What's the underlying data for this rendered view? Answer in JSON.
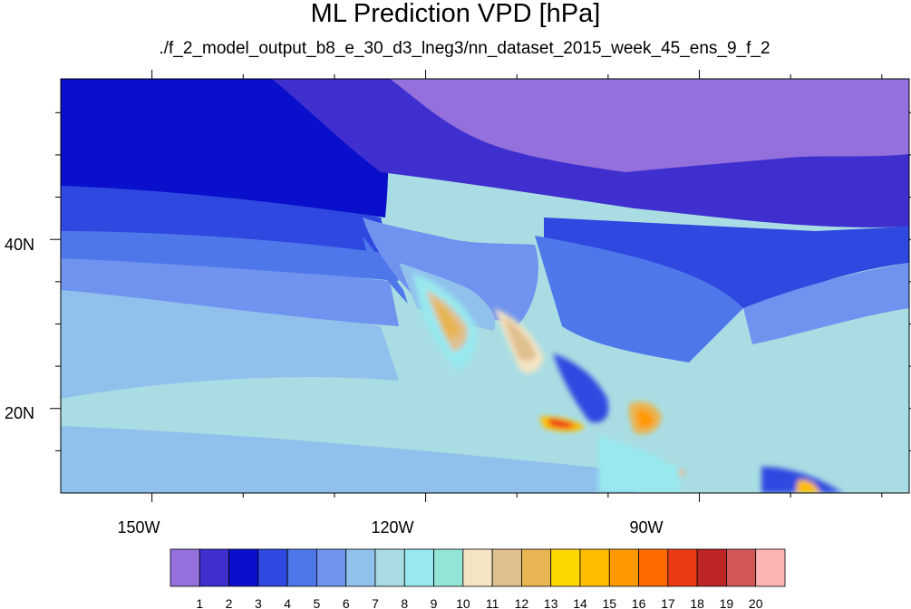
{
  "title": "ML Prediction VPD [hPa]",
  "subtitle": "./f_2_model_output_b8_e_30_d3_lneg3/nn_dataset_2015_week_45_ens_9_f_2",
  "map": {
    "lon_range": [
      -160,
      -67
    ],
    "lat_range": [
      10,
      59
    ],
    "x_ticks": [
      {
        "lon": -150,
        "label": "150W"
      },
      {
        "lon": -120,
        "label": "120W"
      },
      {
        "lon": -90,
        "label": "90W"
      }
    ],
    "y_ticks": [
      {
        "lat": 40,
        "label": "40N"
      },
      {
        "lat": 20,
        "label": "20N"
      }
    ]
  },
  "colorbar": {
    "labels": [
      "1",
      "2",
      "3",
      "4",
      "5",
      "6",
      "7",
      "8",
      "9",
      "10",
      "11",
      "12",
      "13",
      "14",
      "15",
      "16",
      "17",
      "18",
      "19",
      "20"
    ],
    "colors": [
      "#9370db",
      "#3f2fcf",
      "#0a0fcc",
      "#2e48e0",
      "#4e78ea",
      "#6f93ee",
      "#90c0ec",
      "#a9dde3",
      "#98e8ef",
      "#93e6d6",
      "#f5e4c4",
      "#e0bf8e",
      "#e8b552",
      "#ffd700",
      "#ffbe00",
      "#ff9900",
      "#ff6a00",
      "#ec3b14",
      "#bd2424",
      "#d25858",
      "#ffb4b4"
    ]
  }
}
